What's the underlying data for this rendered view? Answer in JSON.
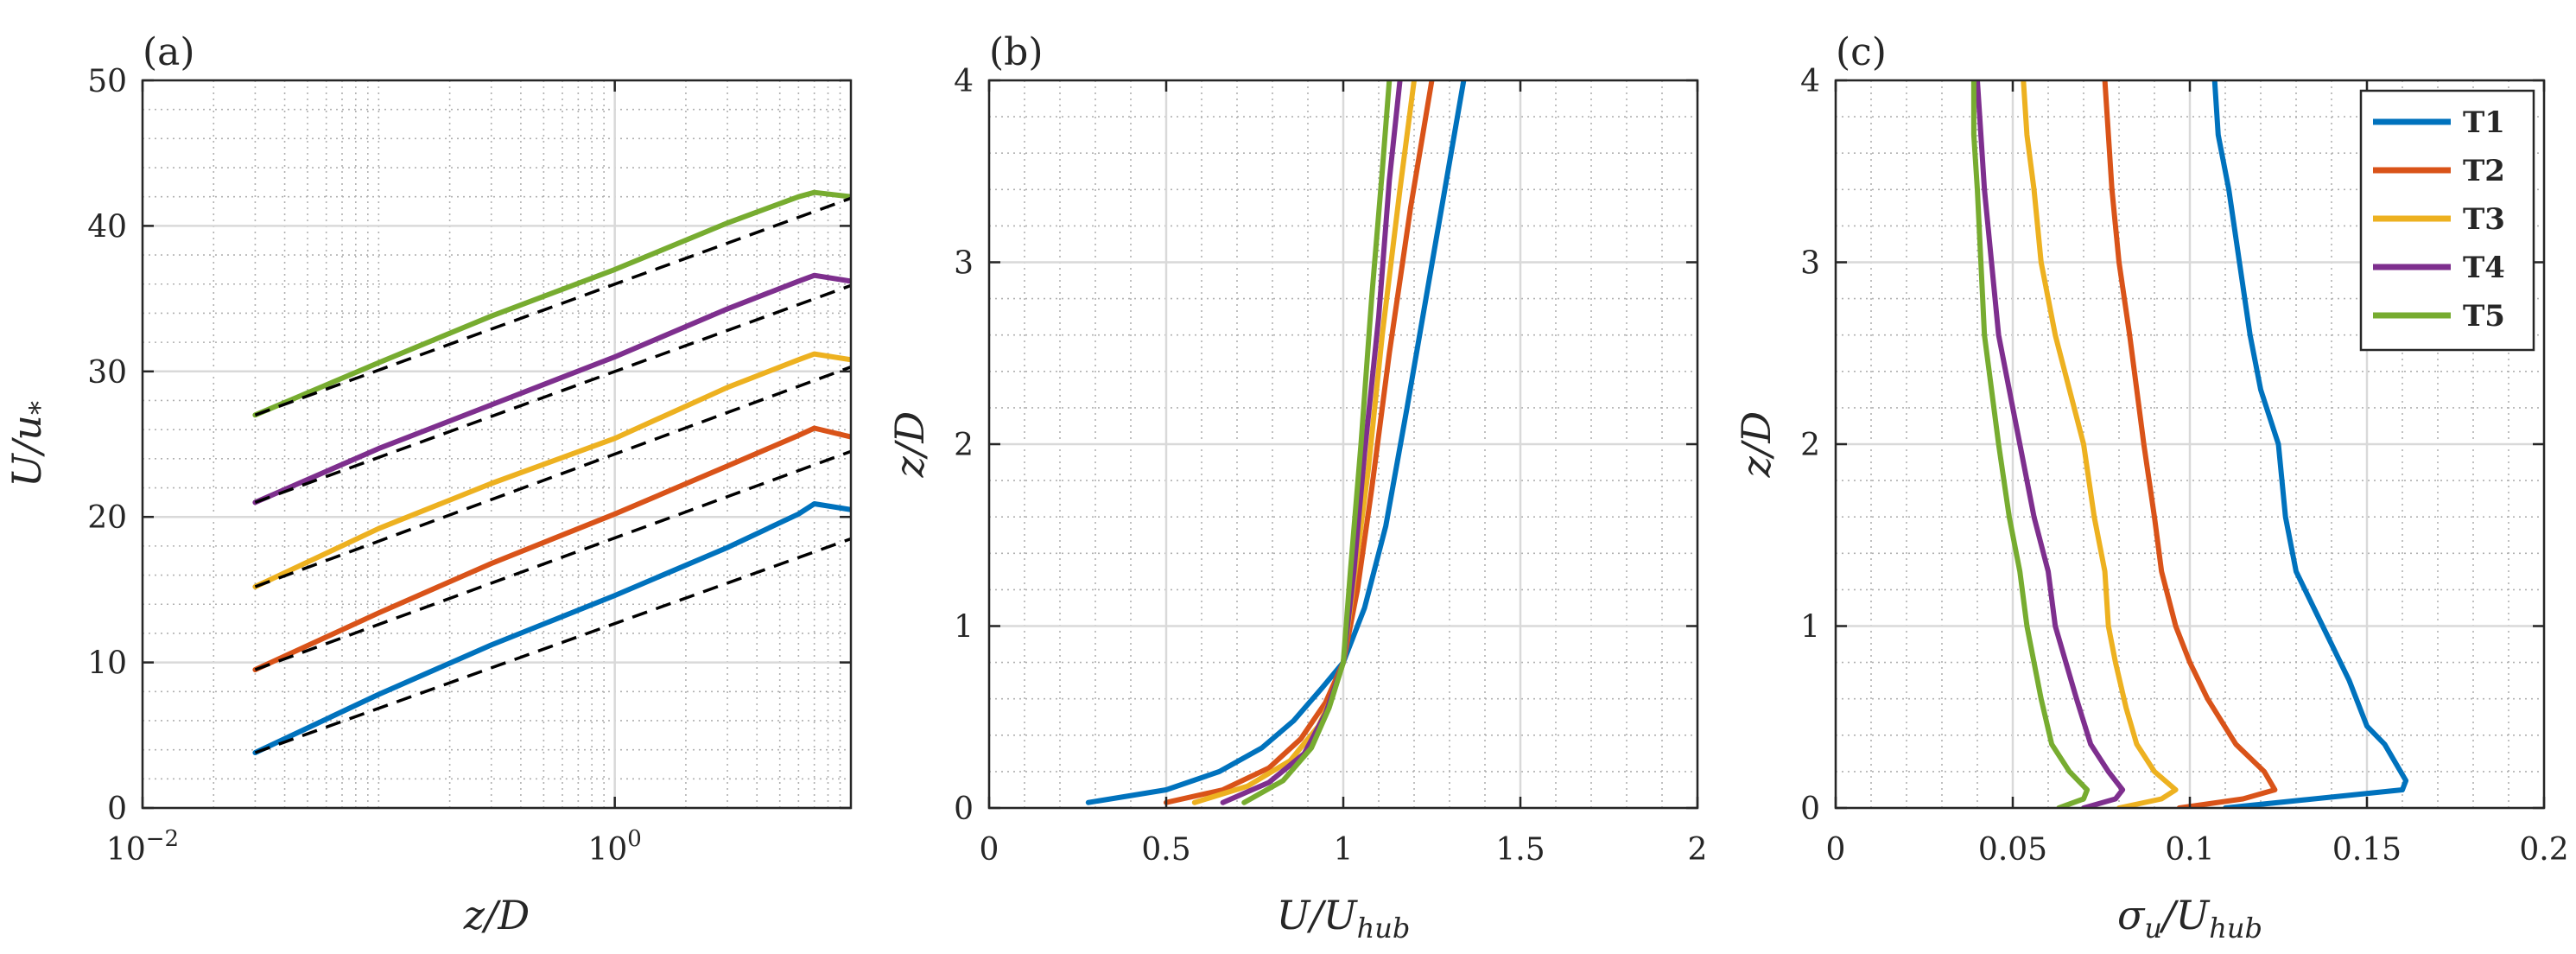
{
  "colors": {
    "T1": "#0072BD",
    "T2": "#D95319",
    "T3": "#EDB120",
    "T4": "#7E2F8E",
    "T5": "#77AC30",
    "fit": "#000000",
    "grid_major": "#d9d9d9",
    "grid_minor": "#b0b0b0",
    "axis": "#262626"
  },
  "chart_data": [
    {
      "panel": "(a)",
      "type": "line",
      "x_scale": "log",
      "xlim": [
        0.01,
        10
      ],
      "ylim": [
        0,
        50
      ],
      "xticks": [
        0.01,
        1
      ],
      "xtick_labels": [
        {
          "base": "10",
          "exp": "−2"
        },
        {
          "base": "10",
          "exp": "0"
        }
      ],
      "yticks": [
        0,
        10,
        20,
        30,
        40,
        50
      ],
      "xlabel": "z/D",
      "ylabel": "U/u*",
      "ylabel_parts": {
        "main": "U/u",
        "sub": "*"
      },
      "grid": "major and minor",
      "series": [
        {
          "name": "T1",
          "x": [
            0.03,
            0.1,
            0.3,
            1,
            3,
            6,
            7,
            10
          ],
          "y": [
            3.8,
            7.8,
            11.2,
            14.6,
            17.9,
            20.2,
            20.9,
            20.5
          ]
        },
        {
          "name": "T2",
          "x": [
            0.03,
            0.1,
            0.3,
            1,
            3,
            6,
            7,
            10
          ],
          "y": [
            9.5,
            13.4,
            16.8,
            20.2,
            23.5,
            25.6,
            26.1,
            25.5
          ]
        },
        {
          "name": "T3",
          "x": [
            0.03,
            0.1,
            0.3,
            1,
            3,
            6,
            7,
            10
          ],
          "y": [
            15.2,
            19.2,
            22.3,
            25.4,
            28.9,
            30.8,
            31.2,
            30.8
          ]
        },
        {
          "name": "T4",
          "x": [
            0.03,
            0.1,
            0.3,
            1,
            3,
            6,
            7,
            10
          ],
          "y": [
            21.0,
            24.7,
            27.7,
            31.0,
            34.3,
            36.2,
            36.6,
            36.2
          ]
        },
        {
          "name": "T5",
          "x": [
            0.03,
            0.1,
            0.3,
            1,
            3,
            6,
            7,
            10
          ],
          "y": [
            27.0,
            30.6,
            33.8,
            37.0,
            40.2,
            42.0,
            42.3,
            42.0
          ]
        }
      ],
      "fit_lines": [
        {
          "for": "T1",
          "x": [
            0.03,
            10
          ],
          "y": [
            3.8,
            18.5
          ]
        },
        {
          "for": "T2",
          "x": [
            0.03,
            10
          ],
          "y": [
            9.5,
            24.5
          ]
        },
        {
          "for": "T3",
          "x": [
            0.03,
            10
          ],
          "y": [
            15.2,
            30.3
          ]
        },
        {
          "for": "T4",
          "x": [
            0.03,
            10
          ],
          "y": [
            21.0,
            35.9
          ]
        },
        {
          "for": "T5",
          "x": [
            0.03,
            10
          ],
          "y": [
            27.0,
            41.9
          ]
        }
      ]
    },
    {
      "panel": "(b)",
      "type": "line",
      "x_scale": "linear",
      "xlim": [
        0,
        2
      ],
      "ylim": [
        0,
        4
      ],
      "xticks": [
        0,
        0.5,
        1,
        1.5,
        2
      ],
      "yticks": [
        0,
        1,
        2,
        3,
        4
      ],
      "xlabel": "U/U_hub",
      "xlabel_parts": {
        "main": "U/U",
        "sub": "hub"
      },
      "ylabel": "z/D",
      "grid": "major and minor",
      "series": [
        {
          "name": "T1",
          "x": [
            0.28,
            0.5,
            0.65,
            0.77,
            0.86,
            0.94,
            1.0,
            1.06,
            1.12,
            1.18,
            1.26,
            1.34
          ],
          "y": [
            0.03,
            0.1,
            0.2,
            0.33,
            0.48,
            0.66,
            0.8,
            1.1,
            1.55,
            2.2,
            3.1,
            4.0
          ]
        },
        {
          "name": "T2",
          "x": [
            0.5,
            0.66,
            0.79,
            0.88,
            0.95,
            1.0,
            1.04,
            1.08,
            1.13,
            1.19,
            1.25
          ],
          "y": [
            0.03,
            0.1,
            0.22,
            0.38,
            0.58,
            0.8,
            1.2,
            1.75,
            2.5,
            3.3,
            4.0
          ]
        },
        {
          "name": "T3",
          "x": [
            0.58,
            0.73,
            0.85,
            0.93,
            0.97,
            1.0,
            1.03,
            1.07,
            1.11,
            1.16,
            1.2
          ],
          "y": [
            0.03,
            0.12,
            0.26,
            0.45,
            0.62,
            0.8,
            1.25,
            1.85,
            2.6,
            3.4,
            4.0
          ]
        },
        {
          "name": "T4",
          "x": [
            0.66,
            0.79,
            0.89,
            0.95,
            1.0,
            1.03,
            1.06,
            1.1,
            1.13,
            1.16
          ],
          "y": [
            0.03,
            0.14,
            0.3,
            0.52,
            0.8,
            1.3,
            1.95,
            2.7,
            3.45,
            4.0
          ]
        },
        {
          "name": "T5",
          "x": [
            0.72,
            0.83,
            0.91,
            0.96,
            1.0,
            1.02,
            1.05,
            1.08,
            1.11,
            1.13
          ],
          "y": [
            0.03,
            0.15,
            0.33,
            0.55,
            0.8,
            1.3,
            2.0,
            2.8,
            3.5,
            4.0
          ]
        }
      ]
    },
    {
      "panel": "(c)",
      "type": "line",
      "x_scale": "linear",
      "xlim": [
        0,
        0.2
      ],
      "ylim": [
        0,
        4
      ],
      "xticks": [
        0,
        0.05,
        0.1,
        0.15,
        0.2
      ],
      "yticks": [
        0,
        1,
        2,
        3,
        4
      ],
      "xlabel": "σu/U_hub",
      "xlabel_parts": {
        "main": "σ",
        "sub1": "u",
        "mid": "/U",
        "sub2": "hub"
      },
      "ylabel": "z/D",
      "grid": "major and minor",
      "legend": {
        "position": "top-right",
        "entries": [
          "T1",
          "T2",
          "T3",
          "T4",
          "T5"
        ]
      },
      "series": [
        {
          "name": "T1",
          "x": [
            0.11,
            0.135,
            0.16,
            0.161,
            0.155,
            0.15,
            0.145,
            0.14,
            0.135,
            0.13,
            0.127,
            0.125,
            0.12,
            0.117,
            0.114,
            0.111,
            0.108,
            0.107
          ],
          "y": [
            0.0,
            0.05,
            0.1,
            0.15,
            0.35,
            0.45,
            0.7,
            0.9,
            1.1,
            1.3,
            1.6,
            2.0,
            2.3,
            2.6,
            3.0,
            3.4,
            3.7,
            4.0
          ]
        },
        {
          "name": "T2",
          "x": [
            0.097,
            0.115,
            0.124,
            0.121,
            0.113,
            0.105,
            0.1,
            0.096,
            0.092,
            0.09,
            0.087,
            0.085,
            0.083,
            0.08,
            0.078,
            0.077,
            0.076
          ],
          "y": [
            0.0,
            0.05,
            0.1,
            0.2,
            0.35,
            0.6,
            0.8,
            1.0,
            1.3,
            1.6,
            2.0,
            2.3,
            2.6,
            3.0,
            3.4,
            3.7,
            4.0
          ]
        },
        {
          "name": "T3",
          "x": [
            0.08,
            0.092,
            0.096,
            0.09,
            0.085,
            0.082,
            0.079,
            0.077,
            0.076,
            0.073,
            0.07,
            0.066,
            0.062,
            0.058,
            0.056,
            0.054,
            0.053
          ],
          "y": [
            0.0,
            0.05,
            0.1,
            0.2,
            0.35,
            0.55,
            0.8,
            1.0,
            1.3,
            1.6,
            2.0,
            2.3,
            2.6,
            3.0,
            3.4,
            3.7,
            4.0
          ]
        },
        {
          "name": "T4",
          "x": [
            0.07,
            0.079,
            0.081,
            0.077,
            0.072,
            0.068,
            0.065,
            0.062,
            0.06,
            0.056,
            0.052,
            0.049,
            0.046,
            0.044,
            0.042,
            0.041,
            0.04
          ],
          "y": [
            0.0,
            0.05,
            0.1,
            0.2,
            0.35,
            0.6,
            0.8,
            1.0,
            1.3,
            1.6,
            2.0,
            2.3,
            2.6,
            3.0,
            3.4,
            3.7,
            4.0
          ]
        },
        {
          "name": "T5",
          "x": [
            0.063,
            0.07,
            0.071,
            0.066,
            0.061,
            0.058,
            0.056,
            0.054,
            0.052,
            0.049,
            0.046,
            0.044,
            0.042,
            0.041,
            0.04,
            0.039,
            0.039
          ],
          "y": [
            0.0,
            0.05,
            0.1,
            0.2,
            0.35,
            0.6,
            0.8,
            1.0,
            1.3,
            1.6,
            2.0,
            2.3,
            2.6,
            3.0,
            3.4,
            3.7,
            4.0
          ]
        }
      ]
    }
  ]
}
